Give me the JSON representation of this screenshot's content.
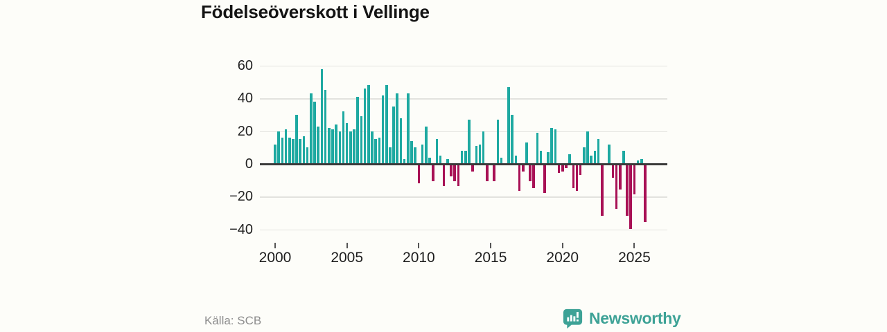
{
  "title": "Födelseöverskott i Vellinge",
  "source": "Källa: SCB",
  "brand": {
    "name": "Newsworthy",
    "color": "#3da296"
  },
  "chart_data": {
    "type": "bar",
    "title": "Födelseöverskott i Vellinge",
    "frequency": "quarterly",
    "x_start": "2000-Q1",
    "x_end": "2025-Q4",
    "xlabel": "",
    "ylabel": "",
    "ylim": [
      -45,
      65
    ],
    "grid": "horizontal",
    "legend": "none",
    "x_tick_labels": [
      "2000",
      "2005",
      "2010",
      "2015",
      "2020",
      "2025"
    ],
    "y_ticks": [
      60,
      40,
      20,
      0,
      -20,
      -40
    ],
    "y_tick_labels": [
      "60",
      "40",
      "20",
      "0",
      "−20",
      "−40"
    ],
    "colors": {
      "positive": "#1ea9a1",
      "negative": "#a81155"
    },
    "series": [
      {
        "name": "Födelseöverskott",
        "values": [
          12,
          20,
          16,
          21,
          16,
          15,
          30,
          15,
          17,
          10,
          43,
          38,
          23,
          58,
          45,
          22,
          21,
          24,
          20,
          32,
          25,
          20,
          21,
          41,
          29,
          46,
          48,
          20,
          15,
          16,
          42,
          48,
          10,
          35,
          43,
          28,
          3,
          43,
          14,
          10,
          -11,
          12,
          23,
          4,
          -10,
          15,
          5,
          -13,
          3,
          -7,
          -10,
          -13,
          8,
          8,
          27,
          -4,
          11,
          12,
          20,
          -10,
          0,
          -10,
          27,
          4,
          0,
          47,
          30,
          5,
          -16,
          -4,
          13,
          -10,
          -14,
          19,
          8,
          -17,
          7,
          22,
          21,
          -5,
          -4,
          -2,
          6,
          -14,
          -16,
          -6,
          10,
          20,
          5,
          8,
          15,
          -31,
          0,
          12,
          -8,
          -27,
          -15,
          8,
          -31,
          -39,
          -18,
          2,
          3,
          -35
        ]
      }
    ]
  }
}
